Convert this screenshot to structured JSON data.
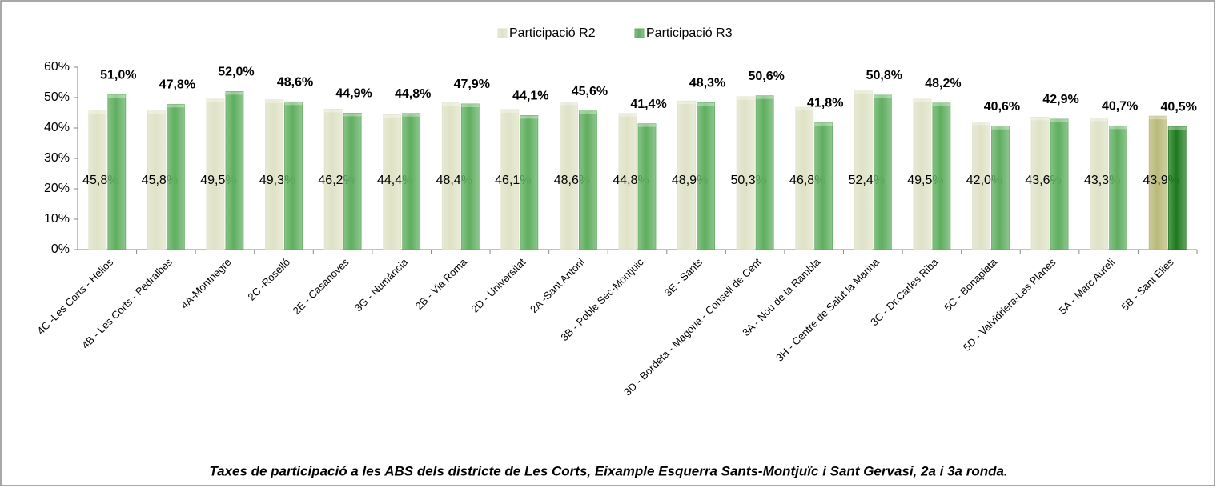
{
  "chart_data": {
    "type": "bar",
    "title": "Taxes de participació a les ABS dels districte de Les Corts, Eixample Esquerra Sants-Montjuïc i Sant Gervasi, 2a i 3a ronda.",
    "categories": [
      "4C -Les Corts - Helios",
      "4B - Les Corts - Pedralbes",
      "4A-Montnegre",
      "2C -Roselló",
      "2E - Casanoves",
      "3G - Numància",
      "2B - Via Roma",
      "2D - Universitat",
      "2A -Sant Antoni",
      "3B - Poble Sec-Montjuic",
      "3E - Sants",
      "3D - Bordeta - Magoria - Consell de Cent",
      "3A - Nou de la Rambla",
      "3H - Centre de Salut la Marina",
      "3C - Dr.Carles Riba",
      "5C - Bonaplata",
      "5D - Valvidriera-Les Planes",
      "5A - Marc Aureli",
      "5B - Sant Elies"
    ],
    "series": [
      {
        "name": "Participació R2",
        "color": "#dfe2c6",
        "colors": [
          "#dfe2c6",
          "#dfe2c6",
          "#dfe2c6",
          "#dfe2c6",
          "#dfe2c6",
          "#dfe2c6",
          "#dfe2c6",
          "#dfe2c6",
          "#dfe2c6",
          "#dfe2c6",
          "#dfe2c6",
          "#dfe2c6",
          "#dfe2c6",
          "#dfe2c6",
          "#dfe2c6",
          "#dfe2c6",
          "#dfe2c6",
          "#dfe2c6",
          "#b9b97a"
        ],
        "values": [
          45.8,
          45.8,
          49.5,
          49.3,
          46.2,
          44.4,
          48.4,
          46.1,
          48.6,
          44.8,
          48.9,
          50.3,
          46.8,
          52.4,
          49.5,
          42.0,
          43.6,
          43.3,
          43.9
        ],
        "value_labels": [
          "45,8%",
          "45,8%",
          "49,5%",
          "49,3%",
          "46,2%",
          "44,4%",
          "48,4%",
          "46,1%",
          "48,6%",
          "44,8%",
          "48,9%",
          "50,3%",
          "46,8%",
          "52,4%",
          "49,5%",
          "42,0%",
          "43,6%",
          "43,3%",
          "43,9%"
        ]
      },
      {
        "name": "Participació R3",
        "color": "#5fae5f",
        "colors": [
          "#5fae5f",
          "#5fae5f",
          "#5fae5f",
          "#5fae5f",
          "#5fae5f",
          "#5fae5f",
          "#5fae5f",
          "#5fae5f",
          "#5fae5f",
          "#5fae5f",
          "#5fae5f",
          "#5fae5f",
          "#5fae5f",
          "#5fae5f",
          "#5fae5f",
          "#5fae5f",
          "#5fae5f",
          "#5fae5f",
          "#1d7a1d"
        ],
        "values": [
          51.0,
          47.8,
          52.0,
          48.6,
          44.9,
          44.8,
          47.9,
          44.1,
          45.6,
          41.4,
          48.3,
          50.6,
          41.8,
          50.8,
          48.2,
          40.6,
          42.9,
          40.7,
          40.5
        ],
        "value_labels": [
          "51,0%",
          "47,8%",
          "52,0%",
          "48,6%",
          "44,9%",
          "44,8%",
          "47,9%",
          "44,1%",
          "45,6%",
          "41,4%",
          "48,3%",
          "50,6%",
          "41,8%",
          "50,8%",
          "48,2%",
          "40,6%",
          "42,9%",
          "40,7%",
          "40,5%"
        ]
      }
    ],
    "ylim": [
      0,
      60
    ],
    "yticks": [
      {
        "value": 0,
        "label": "0%"
      },
      {
        "value": 10,
        "label": "10%"
      },
      {
        "value": 20,
        "label": "20%"
      },
      {
        "value": 30,
        "label": "30%"
      },
      {
        "value": 40,
        "label": "40%"
      },
      {
        "value": 50,
        "label": "50%"
      },
      {
        "value": 60,
        "label": "60%"
      }
    ],
    "grid": false,
    "legend": "top"
  }
}
